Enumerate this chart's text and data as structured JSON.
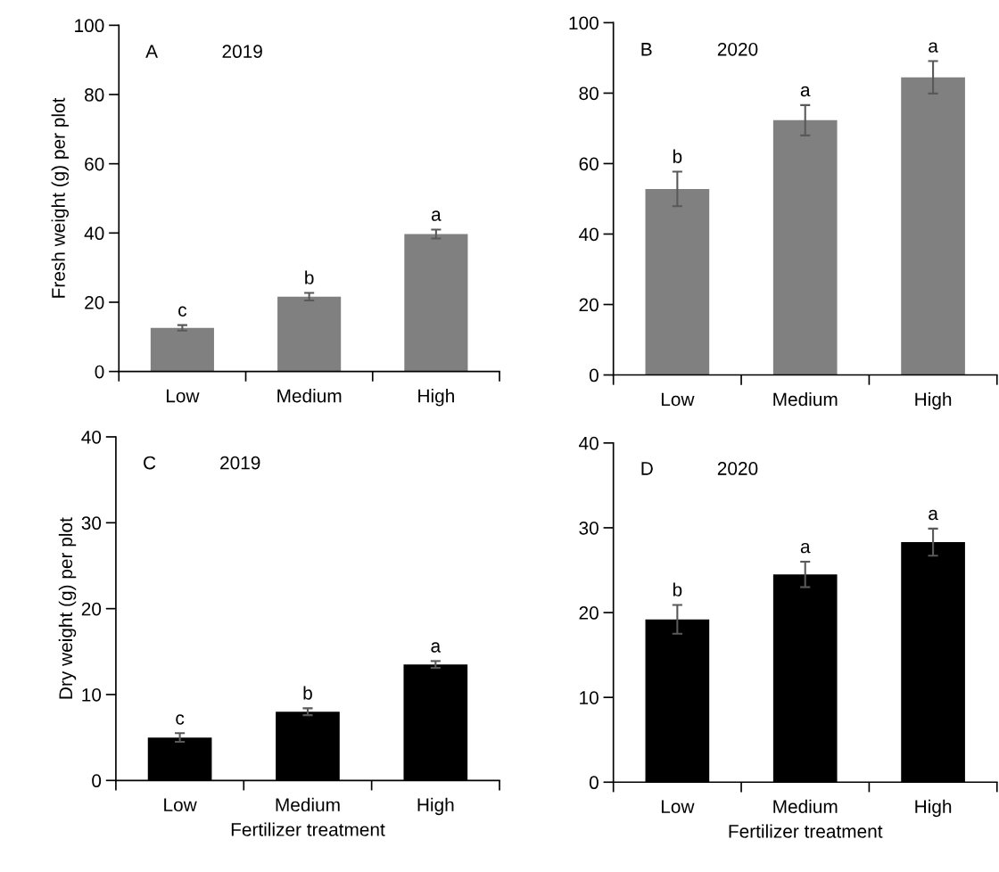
{
  "chart_data": [
    {
      "type": "bar",
      "categories": [
        "Low",
        "Medium",
        "High"
      ],
      "ylabel": "Fresh weight (g) per plot",
      "values": [
        12.6,
        21.6,
        39.7
      ],
      "errors": [
        0.8,
        1.1,
        1.3
      ],
      "color": "#808080",
      "ylim": [
        0,
        100
      ],
      "yticks": [
        0,
        20,
        40,
        60,
        80,
        100
      ],
      "annotations": [
        "A",
        "2019",
        {
          "text": "c",
          "x": "Low",
          "y": 13.4
        },
        {
          "text": "b",
          "x": "Medium",
          "y": 22.7
        },
        {
          "text": "a",
          "x": "High",
          "y": 41.0
        }
      ]
    },
    {
      "type": "bar",
      "categories": [
        "Low",
        "Medium",
        "High"
      ],
      "values": [
        52.8,
        72.3,
        84.5
      ],
      "errors": [
        4.9,
        4.3,
        4.6
      ],
      "color": "#808080",
      "ylim": [
        0,
        100
      ],
      "yticks": [
        0,
        20,
        40,
        60,
        80,
        100
      ],
      "annotations": [
        "B",
        "2020",
        {
          "text": "b",
          "x": "Low",
          "y": 57.7
        },
        {
          "text": "a",
          "x": "Medium",
          "y": 76.6
        },
        {
          "text": "a",
          "x": "High",
          "y": 89.1
        }
      ]
    },
    {
      "type": "bar",
      "categories": [
        "Low",
        "Medium",
        "High"
      ],
      "xlabel": "Fertilizer treatment",
      "ylabel": "Dry weight (g) per plot",
      "values": [
        5.0,
        8.0,
        13.5
      ],
      "errors": [
        0.5,
        0.4,
        0.4
      ],
      "color": "#000000",
      "ylim": [
        0,
        40
      ],
      "yticks": [
        0,
        10,
        20,
        30,
        40
      ],
      "annotations": [
        "C",
        "2019",
        {
          "text": "c",
          "x": "Low",
          "y": 5.5
        },
        {
          "text": "b",
          "x": "Medium",
          "y": 8.4
        },
        {
          "text": "a",
          "x": "High",
          "y": 13.9
        }
      ]
    },
    {
      "type": "bar",
      "categories": [
        "Low",
        "Medium",
        "High"
      ],
      "xlabel": "Fertilizer treatment",
      "values": [
        19.2,
        24.5,
        28.3
      ],
      "errors": [
        1.7,
        1.5,
        1.6
      ],
      "color": "#000000",
      "ylim": [
        0,
        40
      ],
      "yticks": [
        0,
        10,
        20,
        30,
        40
      ],
      "annotations": [
        "D",
        "2020",
        {
          "text": "b",
          "x": "Low",
          "y": 20.9
        },
        {
          "text": "a",
          "x": "Medium",
          "y": 26.0
        },
        {
          "text": "a",
          "x": "High",
          "y": 29.9
        }
      ]
    }
  ]
}
